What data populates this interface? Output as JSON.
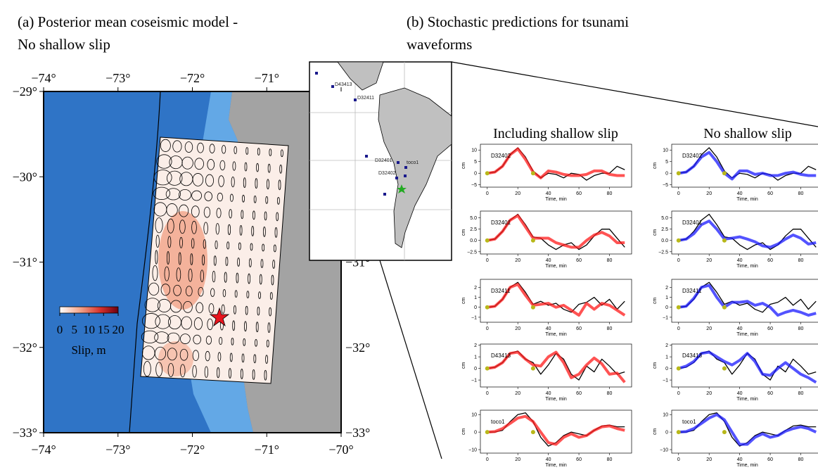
{
  "panel_a": {
    "title_lines": [
      "(a) Posterior mean coseismic model -",
      "No shallow slip"
    ],
    "xlim": [
      -74,
      -70
    ],
    "xticks": [
      {
        "value": -74,
        "label": "−74°"
      },
      {
        "value": -73,
        "label": "−73°"
      },
      {
        "value": -72,
        "label": "−72°"
      },
      {
        "value": -71,
        "label": "−71°"
      },
      {
        "value": -70,
        "label": "−70°"
      }
    ],
    "ylim": [
      -29,
      -33
    ],
    "yticks": [
      {
        "value": -29,
        "label": "−29°"
      },
      {
        "value": -30,
        "label": "−30°"
      },
      {
        "value": -31,
        "label": "−31°"
      },
      {
        "value": -32,
        "label": "−32°"
      },
      {
        "value": -33,
        "label": "−33°"
      }
    ],
    "colorbar": {
      "lim": [
        0,
        20
      ],
      "ticks": [
        0,
        5,
        10,
        15,
        20
      ],
      "label": "Slip, m"
    }
  },
  "panel_b": {
    "title_lines": [
      "(b) Stochastic predictions for tsunami",
      "waveforms"
    ],
    "column_titles": [
      "Including shallow slip",
      "No shallow slip"
    ],
    "stations": [
      "D43413",
      "D32411",
      "D32401",
      "toco1",
      "D32402"
    ]
  },
  "chart_data": [
    {
      "type": "line",
      "label": "D32402",
      "xlabel": "Time, min",
      "ylabel": "cm",
      "x": [
        0,
        5,
        10,
        15,
        20,
        25,
        30,
        35,
        40,
        45,
        50,
        55,
        60,
        65,
        70,
        75,
        80,
        85,
        90
      ],
      "xlim": [
        -4.5,
        94.5
      ],
      "xticks": [
        0,
        20,
        40,
        60,
        80
      ],
      "ylim": [
        -6,
        12.5
      ],
      "yticks": [
        {
          "value": -5,
          "label": "−5"
        },
        0,
        5,
        10
      ],
      "series": [
        {
          "color": "#000000",
          "values": [
            0,
            0.5,
            3,
            8,
            11,
            7,
            1,
            -2,
            0,
            -0.5,
            -2,
            0,
            -0.5,
            -3,
            -1,
            0,
            0,
            3,
            1.5
          ]
        },
        {
          "color": "#ff1a1a",
          "values": [
            0,
            0.5,
            3,
            8,
            10.5,
            6,
            0.5,
            -2,
            1,
            0.5,
            -0.5,
            -1,
            -1,
            -0.5,
            1,
            1,
            -0.5,
            -1,
            -1
          ]
        }
      ],
      "markers": {
        "x": [
          0,
          30
        ],
        "values": [
          0,
          0
        ],
        "color": "#b8b81a"
      }
    },
    {
      "type": "line",
      "label": "D32401",
      "xlabel": "Time, min",
      "ylabel": "cm",
      "x": [
        0,
        5,
        10,
        15,
        20,
        25,
        30,
        35,
        40,
        45,
        50,
        55,
        60,
        65,
        70,
        75,
        80,
        85,
        90
      ],
      "xlim": [
        -4.5,
        94.5
      ],
      "xticks": [
        0,
        20,
        40,
        60,
        80
      ],
      "ylim": [
        -3,
        6.5
      ],
      "yticks": [
        {
          "value": -2.5,
          "label": "−2.5"
        },
        {
          "value": 0,
          "label": "0.0"
        },
        2.5,
        {
          "value": 5,
          "label": "5.0"
        }
      ],
      "series": [
        {
          "color": "#000000",
          "values": [
            0,
            0.3,
            2,
            4.5,
            5.8,
            3.5,
            0.8,
            0.5,
            -1,
            -2,
            -1,
            -0.5,
            -2,
            -1,
            1,
            2.5,
            2.5,
            0.5,
            -1.5
          ]
        },
        {
          "color": "#ff1a1a",
          "values": [
            0,
            0.3,
            2,
            4.5,
            5.5,
            3,
            0.5,
            0.5,
            0.5,
            -0.5,
            -1,
            -1.5,
            -1.5,
            0,
            1.2,
            1.8,
            1,
            -0.5,
            -0.5
          ]
        }
      ],
      "markers": {
        "x": [
          0,
          30
        ],
        "values": [
          0,
          0
        ],
        "color": "#b8b81a"
      }
    },
    {
      "type": "line",
      "label": "D32411",
      "xlabel": "Time, min",
      "ylabel": "cm",
      "x": [
        0,
        5,
        10,
        15,
        20,
        25,
        30,
        35,
        40,
        45,
        50,
        55,
        60,
        65,
        70,
        75,
        80,
        85,
        90
      ],
      "xlim": [
        -4.5,
        94.5
      ],
      "xticks": [
        0,
        20,
        40,
        60,
        80
      ],
      "ylim": [
        -1.5,
        2.8
      ],
      "yticks": [
        {
          "value": -1,
          "label": "−1"
        },
        0,
        1,
        2
      ],
      "series": [
        {
          "color": "#000000",
          "values": [
            0,
            0.1,
            0.8,
            2,
            2.5,
            1.5,
            0.3,
            0.6,
            0.2,
            0.4,
            -0.2,
            -0.5,
            0.3,
            0.5,
            1,
            0.2,
            0.8,
            -0.2,
            0.6
          ]
        },
        {
          "color": "#ff1a1a",
          "values": [
            0,
            0.1,
            0.8,
            2,
            2.3,
            1.2,
            0.2,
            0.3,
            0.4,
            0,
            0.2,
            -0.3,
            -0.8,
            0.4,
            -0.2,
            0.4,
            0.2,
            -0.3,
            -0.8
          ]
        }
      ],
      "markers": {
        "x": [
          0,
          30
        ],
        "values": [
          0,
          0
        ],
        "color": "#b8b81a"
      }
    },
    {
      "type": "line",
      "label": "D43413",
      "xlabel": "Time, min",
      "ylabel": "cm",
      "x": [
        0,
        5,
        10,
        15,
        20,
        25,
        30,
        35,
        40,
        45,
        50,
        55,
        60,
        65,
        70,
        75,
        80,
        85,
        90
      ],
      "xlim": [
        -4.5,
        94.5
      ],
      "xticks": [
        0,
        20,
        40,
        60,
        80
      ],
      "ylim": [
        -1.6,
        2.1
      ],
      "yticks": [
        {
          "value": -1,
          "label": "−1"
        },
        0,
        1,
        2
      ],
      "series": [
        {
          "color": "#000000",
          "values": [
            0,
            0.1,
            0.5,
            1.3,
            1.5,
            0.8,
            0.5,
            -0.5,
            0.3,
            1.3,
            0.8,
            -0.5,
            -1,
            0.2,
            -0.3,
            0.8,
            0.2,
            -0.5,
            -0.3
          ]
        },
        {
          "color": "#ff1a1a",
          "values": [
            0,
            0.1,
            0.5,
            1.3,
            1.4,
            0.8,
            0.3,
            0.2,
            1,
            1.4,
            0.5,
            -0.8,
            -0.5,
            0.3,
            0.9,
            0.4,
            -0.5,
            -0.4,
            -1.2
          ]
        }
      ],
      "markers": {
        "x": [
          0,
          30
        ],
        "values": [
          0,
          0
        ],
        "color": "#b8b81a"
      }
    },
    {
      "type": "line",
      "label": "toco1",
      "xlabel": "Time, min",
      "ylabel": "cm",
      "x": [
        0,
        5,
        10,
        15,
        20,
        25,
        30,
        35,
        40,
        45,
        50,
        55,
        60,
        65,
        70,
        75,
        80,
        85,
        90
      ],
      "xlim": [
        -4.5,
        94.5
      ],
      "xticks": [
        0,
        20,
        40,
        60,
        80
      ],
      "ylim": [
        -12,
        12.5
      ],
      "yticks": [
        {
          "value": -10,
          "label": "−10"
        },
        0,
        10
      ],
      "series": [
        {
          "color": "#000000",
          "values": [
            0,
            0,
            1,
            6,
            10,
            11,
            6,
            -3,
            -8,
            -6,
            -2,
            0,
            -1,
            -2,
            1,
            3.5,
            4,
            3,
            3
          ]
        },
        {
          "color": "#ff1a1a",
          "values": [
            0,
            0.3,
            2,
            5,
            8,
            9,
            6,
            0,
            -6,
            -7,
            -3,
            -1,
            -3,
            -2,
            1,
            3,
            3.5,
            2,
            1
          ]
        }
      ],
      "markers": {
        "x": [
          0,
          30
        ],
        "values": [
          0,
          0
        ],
        "color": "#b8b81a"
      }
    },
    {
      "type": "line",
      "label": "D32402",
      "xlabel": "Time, min",
      "ylabel": "cm",
      "x": [
        0,
        5,
        10,
        15,
        20,
        25,
        30,
        35,
        40,
        45,
        50,
        55,
        60,
        65,
        70,
        75,
        80,
        85,
        90
      ],
      "xlim": [
        -4.5,
        94.5
      ],
      "xticks": [
        0,
        20,
        40,
        60,
        80
      ],
      "ylim": [
        -6,
        12.5
      ],
      "yticks": [
        {
          "value": -5,
          "label": "−5"
        },
        0,
        5,
        10
      ],
      "series": [
        {
          "color": "#000000",
          "values": [
            0,
            0.5,
            3,
            8,
            11,
            7,
            1,
            -2,
            0,
            -0.5,
            -2,
            0,
            -0.5,
            -3,
            -1,
            0,
            0,
            3,
            1.5
          ]
        },
        {
          "color": "#1a1aff",
          "values": [
            0,
            0.5,
            3,
            7,
            9,
            5,
            0,
            -2.5,
            1,
            1,
            -0.5,
            0,
            -1,
            -1,
            0,
            0.5,
            -0.5,
            -1,
            -1
          ]
        }
      ],
      "markers": {
        "x": [
          0,
          30
        ],
        "values": [
          0,
          0
        ],
        "color": "#b8b81a"
      }
    },
    {
      "type": "line",
      "label": "D32401",
      "xlabel": "Time, min",
      "ylabel": "cm",
      "x": [
        0,
        5,
        10,
        15,
        20,
        25,
        30,
        35,
        40,
        45,
        50,
        55,
        60,
        65,
        70,
        75,
        80,
        85,
        90
      ],
      "xlim": [
        -4.5,
        94.5
      ],
      "xticks": [
        0,
        20,
        40,
        60,
        80
      ],
      "ylim": [
        -3,
        6.5
      ],
      "yticks": [
        {
          "value": -2.5,
          "label": "−2.5"
        },
        {
          "value": 0,
          "label": "0.0"
        },
        2.5,
        {
          "value": 5,
          "label": "5.0"
        }
      ],
      "series": [
        {
          "color": "#000000",
          "values": [
            0,
            0.3,
            2,
            4.5,
            5.8,
            3.5,
            0.8,
            0.5,
            -1,
            -2,
            -1,
            -0.5,
            -2,
            -1,
            1,
            2.5,
            2.5,
            0.5,
            -1.5
          ]
        },
        {
          "color": "#1a1aff",
          "values": [
            0,
            0.3,
            1.5,
            3.5,
            4.3,
            2.5,
            0.3,
            0.5,
            0.8,
            0.3,
            -0.3,
            -1.2,
            -1.5,
            -0.8,
            0.3,
            1.2,
            0.5,
            -0.8,
            -0.5
          ]
        }
      ],
      "markers": {
        "x": [
          0,
          30
        ],
        "values": [
          0,
          0
        ],
        "color": "#b8b81a"
      }
    },
    {
      "type": "line",
      "label": "D32411",
      "xlabel": "Time, min",
      "ylabel": "cm",
      "x": [
        0,
        5,
        10,
        15,
        20,
        25,
        30,
        35,
        40,
        45,
        50,
        55,
        60,
        65,
        70,
        75,
        80,
        85,
        90
      ],
      "xlim": [
        -4.5,
        94.5
      ],
      "xticks": [
        0,
        20,
        40,
        60,
        80
      ],
      "ylim": [
        -1.5,
        2.8
      ],
      "yticks": [
        {
          "value": -1,
          "label": "−1"
        },
        0,
        1,
        2
      ],
      "series": [
        {
          "color": "#000000",
          "values": [
            0,
            0.1,
            0.8,
            2,
            2.5,
            1.5,
            0.3,
            0.6,
            0.2,
            0.4,
            -0.2,
            -0.5,
            0.3,
            0.5,
            1,
            0.2,
            0.8,
            -0.2,
            0.6
          ]
        },
        {
          "color": "#1a1aff",
          "values": [
            0,
            0.1,
            0.9,
            2,
            2.2,
            1,
            0,
            0.5,
            0.5,
            0.6,
            0.2,
            0.4,
            0,
            -0.8,
            -0.5,
            -0.3,
            -0.5,
            -0.8,
            -0.6
          ]
        }
      ],
      "markers": {
        "x": [
          0,
          30
        ],
        "values": [
          0,
          0
        ],
        "color": "#b8b81a"
      }
    },
    {
      "type": "line",
      "label": "D43413",
      "xlabel": "Time, min",
      "ylabel": "cm",
      "x": [
        0,
        5,
        10,
        15,
        20,
        25,
        30,
        35,
        40,
        45,
        50,
        55,
        60,
        65,
        70,
        75,
        80,
        85,
        90
      ],
      "xlim": [
        -4.5,
        94.5
      ],
      "xticks": [
        0,
        20,
        40,
        60,
        80
      ],
      "ylim": [
        -1.6,
        2.1
      ],
      "yticks": [
        {
          "value": -1,
          "label": "−1"
        },
        0,
        1,
        2
      ],
      "series": [
        {
          "color": "#000000",
          "values": [
            0,
            0.1,
            0.5,
            1.3,
            1.5,
            0.8,
            0.5,
            -0.5,
            0.3,
            1.3,
            0.8,
            -0.5,
            -1,
            0.2,
            -0.3,
            0.8,
            0.2,
            -0.5,
            -0.3
          ]
        },
        {
          "color": "#1a1aff",
          "values": [
            0,
            0.2,
            0.6,
            1.3,
            1.4,
            1,
            0.6,
            0.3,
            0.7,
            1.3,
            0.6,
            -0.5,
            -0.6,
            0,
            0.5,
            0,
            -0.5,
            -0.8,
            -1.2
          ]
        }
      ],
      "markers": {
        "x": [
          0,
          30
        ],
        "values": [
          0,
          0
        ],
        "color": "#b8b81a"
      }
    },
    {
      "type": "line",
      "label": "toco1",
      "xlabel": "Time, min",
      "ylabel": "cm",
      "x": [
        0,
        5,
        10,
        15,
        20,
        25,
        30,
        35,
        40,
        45,
        50,
        55,
        60,
        65,
        70,
        75,
        80,
        85,
        90
      ],
      "xlim": [
        -4.5,
        94.5
      ],
      "xticks": [
        0,
        20,
        40,
        60,
        80
      ],
      "ylim": [
        -12,
        12.5
      ],
      "yticks": [
        {
          "value": -10,
          "label": "−10"
        },
        0,
        10
      ],
      "series": [
        {
          "color": "#000000",
          "values": [
            0,
            0,
            1,
            6,
            10,
            11,
            6,
            -3,
            -8,
            -6,
            -2,
            0,
            -1,
            -2,
            1,
            3.5,
            4,
            3,
            3
          ]
        },
        {
          "color": "#1a1aff",
          "values": [
            0,
            0.3,
            2,
            5,
            8,
            10,
            7,
            0,
            -7,
            -7,
            -3,
            -1,
            -3,
            -2,
            0.5,
            2,
            3,
            2,
            0
          ]
        }
      ],
      "markers": {
        "x": [
          0,
          30
        ],
        "values": [
          0,
          0
        ],
        "color": "#b8b81a"
      }
    }
  ]
}
